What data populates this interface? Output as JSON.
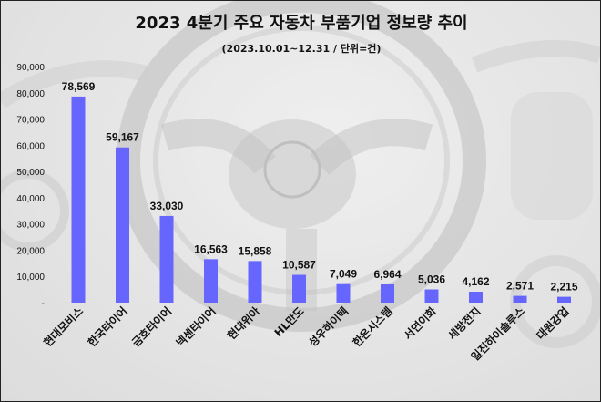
{
  "chart_data": {
    "type": "bar",
    "title": "2023 4분기 주요 자동차 부품기업 정보량 추이",
    "subtitle": "(2023.10.01~12.31 / 단위=건)",
    "categories": [
      "현대모비스",
      "한국타이어",
      "금호타이어",
      "넥센타이어",
      "현대위아",
      "HL만도",
      "성우하이텍",
      "한온시스템",
      "서연이화",
      "세방전지",
      "일진하이솔루스",
      "대원강업"
    ],
    "values": [
      78569,
      59167,
      33030,
      16563,
      15858,
      10587,
      7049,
      6964,
      5036,
      4162,
      2571,
      2215
    ],
    "data_labels": [
      "78,569",
      "59,167",
      "33,030",
      "16,563",
      "15,858",
      "10,587",
      "7,049",
      "6,964",
      "5,036",
      "4,162",
      "2,571",
      "2,215"
    ],
    "y_ticks": [
      0,
      10000,
      20000,
      30000,
      40000,
      50000,
      60000,
      70000,
      80000,
      90000
    ],
    "y_tick_labels": [
      "-",
      "10,000",
      "20,000",
      "30,000",
      "40,000",
      "50,000",
      "60,000",
      "70,000",
      "80,000",
      "90,000"
    ],
    "ylim": [
      0,
      90000
    ],
    "grid": false,
    "legend": "none",
    "bar_color": "#6666ff",
    "text_color": "#111111",
    "background_style": "faded car steering wheel photo"
  }
}
